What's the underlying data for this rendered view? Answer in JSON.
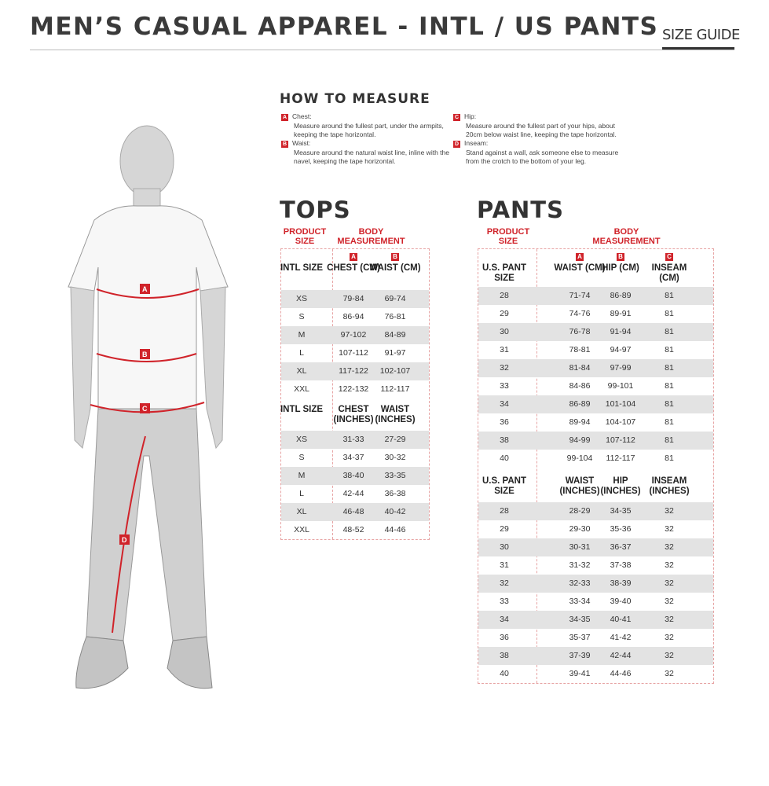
{
  "header": {
    "title": "MEN’S CASUAL APPAREL - INTL / US PANTS",
    "size_guide": "SIZE GUIDE"
  },
  "measure": {
    "title": "HOW TO MEASURE",
    "items": [
      {
        "label": "A",
        "name": "Chest:",
        "desc": "Measure around the fullest part, under the armpits, keeping the tape horizontal."
      },
      {
        "label": "B",
        "name": "Waist:",
        "desc": "Measure around the natural waist line, inline with the navel, keeping the tape horizontal."
      },
      {
        "label": "C",
        "name": "Hip:",
        "desc": "Measure around the fullest part of your hips, about 20cm below waist line, keeping the tape horizontal."
      },
      {
        "label": "D",
        "name": "Inseam:",
        "desc": "Stand against a wall, ask someone else to measure from the crotch to the bottom of your leg."
      }
    ]
  },
  "figure": {
    "labels": [
      "A",
      "B",
      "C",
      "D"
    ]
  },
  "tops": {
    "title": "TOPS",
    "product_size": "PRODUCT SIZE",
    "body_measurement": "BODY MEASUREMENT",
    "cm": {
      "headers": [
        "INTL SIZE",
        "CHEST (CM)",
        "WAIST (CM)"
      ],
      "badges": [
        "A",
        "B"
      ],
      "rows": [
        [
          "XS",
          "79-84",
          "69-74"
        ],
        [
          "S",
          "86-94",
          "76-81"
        ],
        [
          "M",
          "97-102",
          "84-89"
        ],
        [
          "L",
          "107-112",
          "91-97"
        ],
        [
          "XL",
          "117-122",
          "102-107"
        ],
        [
          "XXL",
          "122-132",
          "112-117"
        ]
      ]
    },
    "inches": {
      "headers": [
        "INTL SIZE",
        "CHEST (INCHES)",
        "WAIST (INCHES)"
      ],
      "rows": [
        [
          "XS",
          "31-33",
          "27-29"
        ],
        [
          "S",
          "34-37",
          "30-32"
        ],
        [
          "M",
          "38-40",
          "33-35"
        ],
        [
          "L",
          "42-44",
          "36-38"
        ],
        [
          "XL",
          "46-48",
          "40-42"
        ],
        [
          "XXL",
          "48-52",
          "44-46"
        ]
      ]
    }
  },
  "pants": {
    "title": "PANTS",
    "product_size": "PRODUCT SIZE",
    "body_measurement": "BODY MEASUREMENT",
    "cm": {
      "headers": [
        "U.S. PANT SIZE",
        "WAIST (CM)",
        "HIP (CM)",
        "INSEAM (CM)"
      ],
      "badges": [
        "A",
        "B",
        "C"
      ],
      "rows": [
        [
          "28",
          "71-74",
          "86-89",
          "81"
        ],
        [
          "29",
          "74-76",
          "89-91",
          "81"
        ],
        [
          "30",
          "76-78",
          "91-94",
          "81"
        ],
        [
          "31",
          "78-81",
          "94-97",
          "81"
        ],
        [
          "32",
          "81-84",
          "97-99",
          "81"
        ],
        [
          "33",
          "84-86",
          "99-101",
          "81"
        ],
        [
          "34",
          "86-89",
          "101-104",
          "81"
        ],
        [
          "36",
          "89-94",
          "104-107",
          "81"
        ],
        [
          "38",
          "94-99",
          "107-112",
          "81"
        ],
        [
          "40",
          "99-104",
          "112-117",
          "81"
        ]
      ]
    },
    "inches": {
      "headers": [
        "U.S. PANT SIZE",
        "WAIST (INCHES)",
        "HIP (INCHES)",
        "INSEAM (INCHES)"
      ],
      "rows": [
        [
          "28",
          "28-29",
          "34-35",
          "32"
        ],
        [
          "29",
          "29-30",
          "35-36",
          "32"
        ],
        [
          "30",
          "30-31",
          "36-37",
          "32"
        ],
        [
          "31",
          "31-32",
          "37-38",
          "32"
        ],
        [
          "32",
          "32-33",
          "38-39",
          "32"
        ],
        [
          "33",
          "33-34",
          "39-40",
          "32"
        ],
        [
          "34",
          "34-35",
          "40-41",
          "32"
        ],
        [
          "36",
          "35-37",
          "41-42",
          "32"
        ],
        [
          "38",
          "37-39",
          "42-44",
          "32"
        ],
        [
          "40",
          "39-41",
          "44-46",
          "32"
        ]
      ]
    }
  },
  "colors": {
    "accent": "#d0232a",
    "row_shade": "#e3e3e3"
  }
}
